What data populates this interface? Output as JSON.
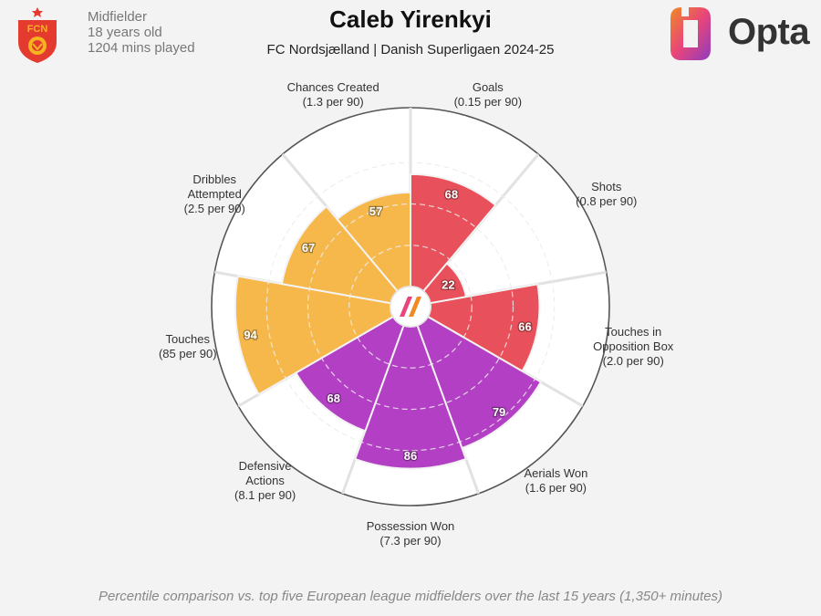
{
  "header": {
    "title": "Caleb Yirenkyi",
    "subtitle": "FC Nordsjælland | Danish Superligaen 2024-25",
    "position": "Midfielder",
    "age": "18 years old",
    "minutes": "1204 mins played",
    "crest_text": "FCN",
    "brand": "Opta"
  },
  "footnote": "Percentile comparison vs. top five European league midfielders over the last 15 years (1,350+ minutes)",
  "colors": {
    "attacking": "#e8505b",
    "possession": "#b23fc4",
    "distribution": "#f6b84b",
    "crest": "#e53a2e",
    "crest_accent": "#f5b51f"
  },
  "chart_data": {
    "type": "polar-bar",
    "scale_max": 100,
    "categories": [
      {
        "label": "Goals",
        "sub": "(0.15 per 90)",
        "value": 68,
        "group": "attacking"
      },
      {
        "label": "Shots",
        "sub": "(0.8 per 90)",
        "value": 22,
        "group": "attacking"
      },
      {
        "label": "Touches in Opposition Box",
        "sub": "(2.0 per 90)",
        "value": 66,
        "group": "attacking"
      },
      {
        "label": "Aerials Won",
        "sub": "(1.6 per 90)",
        "value": 79,
        "group": "possession"
      },
      {
        "label": "Possession Won",
        "sub": "(7.3 per 90)",
        "value": 86,
        "group": "possession"
      },
      {
        "label": "Defensive Actions",
        "sub": "(8.1 per 90)",
        "value": 68,
        "group": "possession"
      },
      {
        "label": "Touches",
        "sub": "(85 per 90)",
        "value": 94,
        "group": "distribution"
      },
      {
        "label": "Dribbles Attempted",
        "sub": "(2.5 per 90)",
        "value": 67,
        "group": "distribution"
      },
      {
        "label": "Chances Created",
        "sub": "(1.3 per 90)",
        "value": 57,
        "group": "distribution"
      }
    ]
  }
}
